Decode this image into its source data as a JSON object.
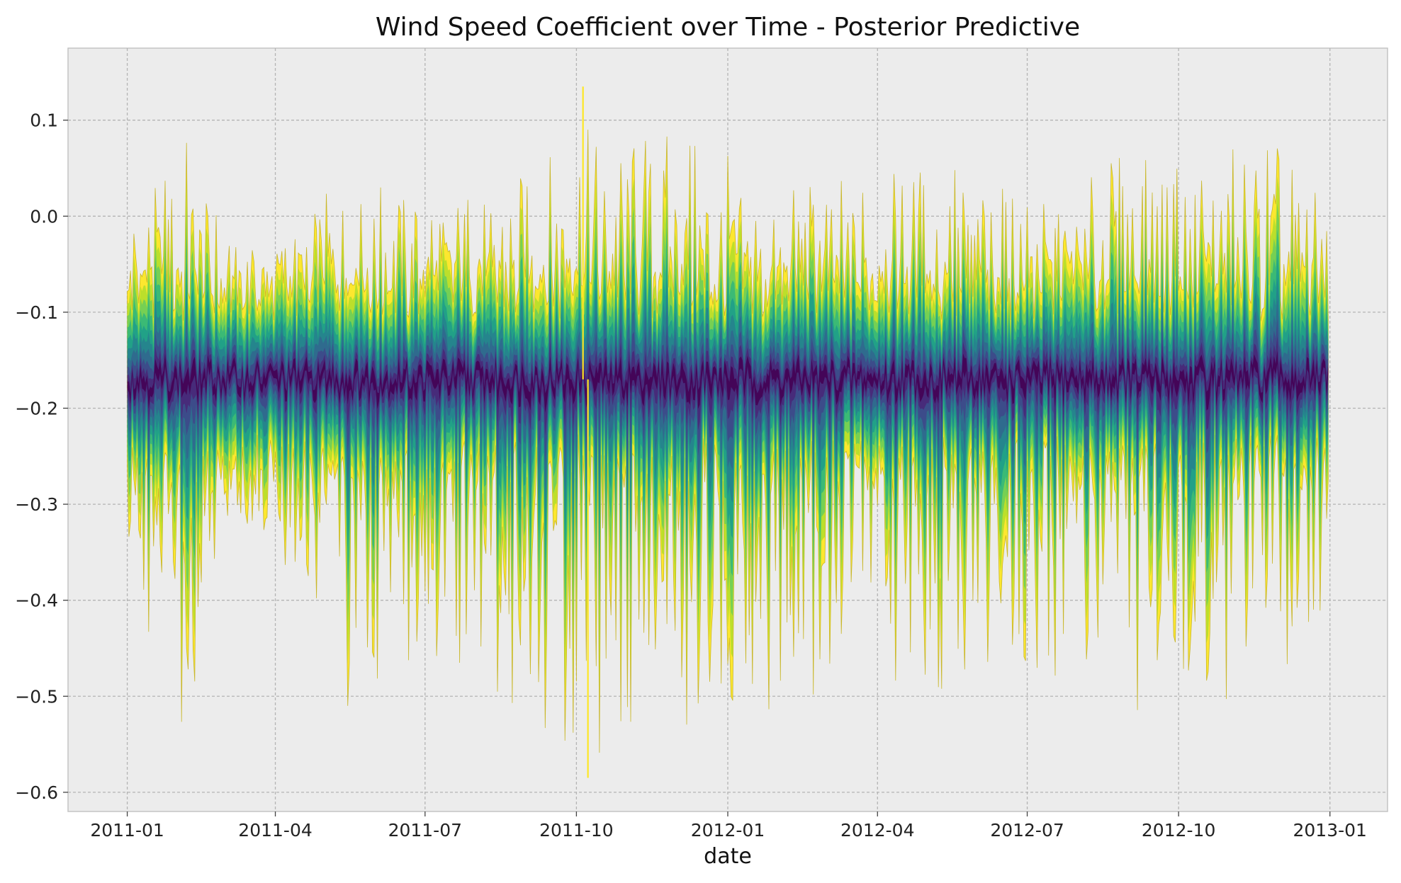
{
  "chart_data": {
    "type": "area",
    "title": "Wind Speed Coefficient over Time - Posterior Predictive",
    "xlabel": "date",
    "ylabel": "",
    "x_range": [
      "2011-01-01",
      "2012-12-31"
    ],
    "xlim": [
      "2010-11-26",
      "2013-02-05"
    ],
    "ylim": [
      -0.62,
      0.175
    ],
    "x_ticks": [
      "2011-01",
      "2011-04",
      "2011-07",
      "2011-10",
      "2012-01",
      "2012-04",
      "2012-07",
      "2012-10",
      "2013-01"
    ],
    "y_ticks": [
      0.1,
      0.0,
      -0.1,
      -0.2,
      -0.3,
      -0.4,
      -0.5,
      -0.6
    ],
    "y_tick_labels": [
      "0.1",
      "0.0",
      "−0.1",
      "−0.2",
      "−0.3",
      "−0.4",
      "−0.5",
      "−0.6"
    ],
    "grid": true,
    "legend": "none",
    "colormap": "viridis",
    "band_colors": [
      "#fde725",
      "#b5de2b",
      "#6ece58",
      "#35b779",
      "#1f9e89",
      "#26828e",
      "#31688e",
      "#3e4989",
      "#482878",
      "#440154"
    ],
    "center_level": -0.17,
    "observed_extremes": {
      "max": {
        "date": "2011-10-05",
        "value": 0.135
      },
      "min": {
        "date": "2011-10-08",
        "value": -0.585
      }
    },
    "envelope_samples": [
      {
        "date": "2011-01-01",
        "upper": -0.02,
        "lower": -0.37
      },
      {
        "date": "2011-02-01",
        "upper": 0.07,
        "lower": -0.52
      },
      {
        "date": "2011-02-08",
        "upper": 0.1,
        "lower": -0.56
      },
      {
        "date": "2011-03-01",
        "upper": -0.03,
        "lower": -0.34
      },
      {
        "date": "2011-04-01",
        "upper": -0.04,
        "lower": -0.34
      },
      {
        "date": "2011-05-15",
        "upper": 0.05,
        "lower": -0.51
      },
      {
        "date": "2011-07-01",
        "upper": 0.03,
        "lower": -0.48
      },
      {
        "date": "2011-08-10",
        "upper": 0.01,
        "lower": -0.49
      },
      {
        "date": "2011-09-25",
        "upper": 0.09,
        "lower": -0.55
      },
      {
        "date": "2011-10-05",
        "upper": 0.135,
        "lower": -0.52
      },
      {
        "date": "2011-10-08",
        "upper": 0.1,
        "lower": -0.585
      },
      {
        "date": "2011-11-15",
        "upper": 0.08,
        "lower": -0.54
      },
      {
        "date": "2011-12-20",
        "upper": 0.09,
        "lower": -0.55
      },
      {
        "date": "2012-01-20",
        "upper": 0.02,
        "lower": -0.52
      },
      {
        "date": "2012-03-20",
        "upper": 0.04,
        "lower": -0.49
      },
      {
        "date": "2012-05-15",
        "upper": 0.05,
        "lower": -0.5
      },
      {
        "date": "2012-07-15",
        "upper": 0.01,
        "lower": -0.5
      },
      {
        "date": "2012-08-25",
        "upper": 0.06,
        "lower": -0.52
      },
      {
        "date": "2012-09-10",
        "upper": 0.07,
        "lower": -0.53
      },
      {
        "date": "2012-10-10",
        "upper": 0.05,
        "lower": -0.52
      },
      {
        "date": "2012-11-20",
        "upper": 0.09,
        "lower": -0.55
      },
      {
        "date": "2012-12-31",
        "upper": 0.01,
        "lower": -0.43
      }
    ]
  }
}
